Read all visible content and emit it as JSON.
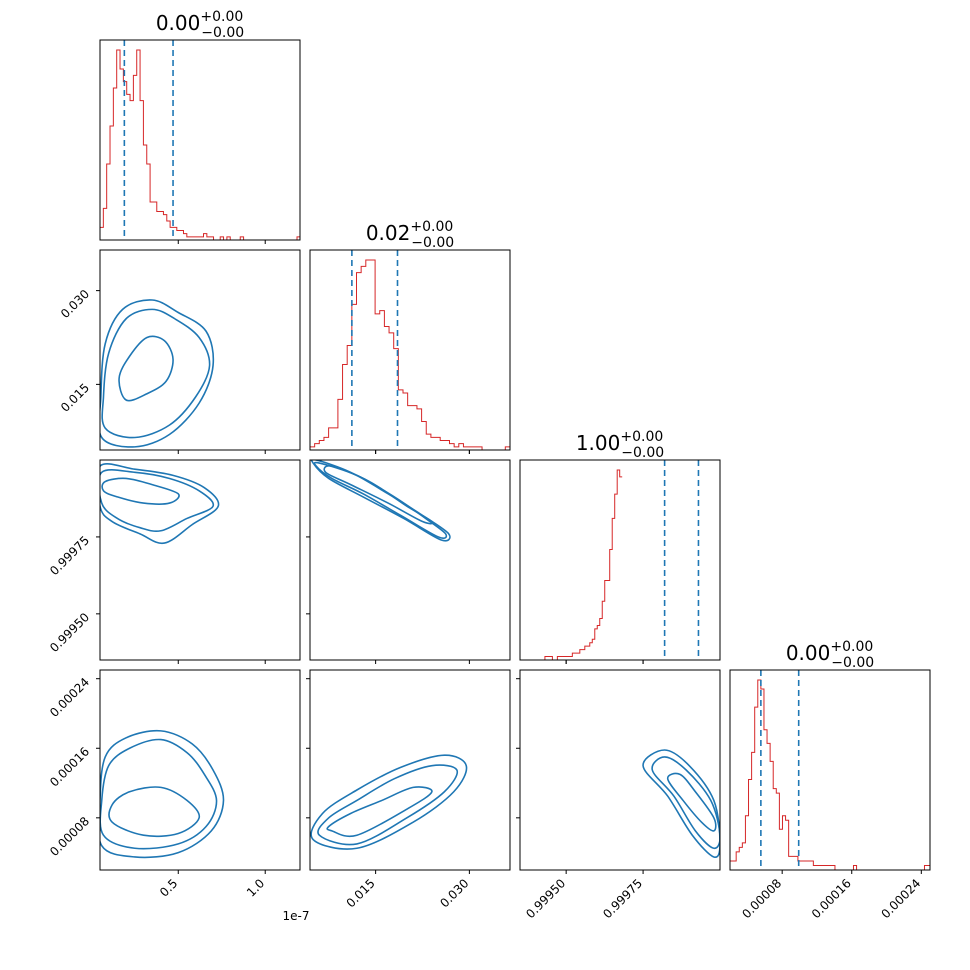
{
  "chart_data": {
    "type": "corner",
    "colors": {
      "hist": "#d62728",
      "contour": "#1f77b4",
      "quantile": "#1f77b4"
    },
    "params": [
      {
        "range": [
          0.05,
          1.2
        ],
        "quantiles": [
          0.19,
          0.47
        ],
        "title": {
          "value": "0.00",
          "plus": "+0.00",
          "minus": "−0.00"
        },
        "ticks": [
          0.5,
          1.0
        ],
        "tick_labels": [
          "0.5",
          "1.0"
        ],
        "offset_label": "1e-7",
        "hist": {
          "start": 0.05,
          "step": 0.0192,
          "counts": [
            4,
            10,
            24,
            36,
            48,
            60,
            54,
            50,
            46,
            44,
            52,
            60,
            44,
            30,
            24,
            12,
            12,
            9,
            9,
            8,
            6,
            4,
            4,
            3,
            3,
            2,
            1,
            1,
            1,
            1,
            1,
            2,
            1,
            1,
            0,
            0,
            1,
            0,
            1,
            0,
            0,
            0,
            1,
            0,
            0,
            0,
            0,
            0,
            0,
            0,
            0,
            0,
            0,
            0,
            0,
            0,
            0,
            0,
            0,
            1
          ]
        }
      },
      {
        "range": [
          0.0045,
          0.0365
        ],
        "quantiles": [
          0.0112,
          0.0185
        ],
        "title": {
          "value": "0.02",
          "plus": "+0.00",
          "minus": "−0.00"
        },
        "ticks": [
          0.015,
          0.03
        ],
        "tick_labels": [
          "0.015",
          "0.030"
        ],
        "hist": {
          "start": 0.0045,
          "step": 0.000744,
          "counts": [
            1,
            2,
            3,
            4,
            7,
            7,
            16,
            27,
            33,
            46,
            56,
            58,
            60,
            60,
            43,
            44,
            39,
            37,
            32,
            19,
            18,
            14,
            14,
            13,
            9,
            5,
            4,
            4,
            3,
            3,
            2,
            1,
            2,
            1,
            1,
            1,
            1,
            0,
            0,
            0,
            0,
            0,
            1
          ]
        }
      },
      {
        "range": [
          0.99935,
          1.0
        ],
        "quantiles": [
          0.99982,
          0.99993
        ],
        "title": {
          "value": "1.00",
          "plus": "+0.00",
          "minus": "−0.00"
        },
        "ticks": [
          0.9995,
          0.99975
        ],
        "tick_labels": [
          "0.99950",
          "0.99975"
        ],
        "hist": {
          "start": 0.99935,
          "step": 8.1e-06,
          "counts": [
            0,
            0,
            0,
            0,
            0,
            0,
            0,
            0,
            0,
            0,
            1,
            1,
            1,
            0,
            0,
            1,
            1,
            1,
            1,
            1,
            1,
            2,
            2,
            2,
            3,
            3,
            4,
            4,
            5,
            6,
            9,
            10,
            12,
            17,
            23,
            23,
            32,
            41,
            48,
            55,
            53
          ]
        }
      },
      {
        "range": [
          2e-05,
          0.00025
        ],
        "quantiles": [
          5.55e-05,
          9.9e-05
        ],
        "title": {
          "value": "0.00",
          "plus": "+0.00",
          "minus": "−0.00"
        },
        "ticks": [
          8e-05,
          0.00016,
          0.00024
        ],
        "tick_labels": [
          "0.00008",
          "0.00016",
          "0.00024"
        ],
        "hist": {
          "start": 2e-05,
          "step": 3.55e-06,
          "counts": [
            2,
            2,
            4,
            5,
            6,
            12,
            20,
            26,
            36,
            42,
            40,
            31,
            28,
            24,
            18,
            17,
            9,
            12,
            11,
            3,
            3,
            3,
            2,
            2,
            2,
            2,
            2,
            1,
            1,
            1,
            1,
            1,
            1,
            1,
            0,
            0,
            0,
            0,
            0,
            0,
            1,
            0,
            0,
            0,
            0,
            0,
            0,
            0,
            0,
            0,
            0,
            0,
            0,
            0,
            0,
            0,
            0,
            0,
            0,
            0,
            0,
            0,
            0,
            1,
            1
          ]
        }
      }
    ],
    "panels_2d": [
      {
        "row": 1,
        "col": 0,
        "contours": [
          [
            [
              0.2,
              0.0125
            ],
            [
              0.32,
              0.0135
            ],
            [
              0.43,
              0.0155
            ],
            [
              0.47,
              0.019
            ],
            [
              0.42,
              0.022
            ],
            [
              0.32,
              0.0225
            ],
            [
              0.22,
              0.0195
            ],
            [
              0.16,
              0.016
            ]
          ],
          [
            [
              0.08,
              0.008
            ],
            [
              0.25,
              0.0065
            ],
            [
              0.45,
              0.0085
            ],
            [
              0.6,
              0.013
            ],
            [
              0.68,
              0.018
            ],
            [
              0.62,
              0.0225
            ],
            [
              0.48,
              0.0255
            ],
            [
              0.35,
              0.027
            ],
            [
              0.2,
              0.0255
            ],
            [
              0.1,
              0.02
            ],
            [
              0.07,
              0.013
            ]
          ],
          [
            [
              0.06,
              0.0065
            ],
            [
              0.25,
              0.005
            ],
            [
              0.45,
              0.007
            ],
            [
              0.62,
              0.012
            ],
            [
              0.7,
              0.018
            ],
            [
              0.66,
              0.0235
            ],
            [
              0.5,
              0.0265
            ],
            [
              0.35,
              0.0285
            ],
            [
              0.18,
              0.027
            ],
            [
              0.08,
              0.0215
            ],
            [
              0.055,
              0.013
            ]
          ]
        ]
      },
      {
        "row": 2,
        "col": 0,
        "contours": [
          [
            [
              0.08,
              0.99993
            ],
            [
              0.2,
              0.99994
            ],
            [
              0.35,
              0.99992
            ],
            [
              0.5,
              0.99989
            ],
            [
              0.45,
              0.99986
            ],
            [
              0.3,
              0.99986
            ],
            [
              0.15,
              0.99988
            ],
            [
              0.07,
              0.9999
            ]
          ],
          [
            [
              0.06,
              0.99996
            ],
            [
              0.25,
              0.99996
            ],
            [
              0.45,
              0.99994
            ],
            [
              0.62,
              0.9999
            ],
            [
              0.7,
              0.99985
            ],
            [
              0.55,
              0.99981
            ],
            [
              0.4,
              0.99977
            ],
            [
              0.28,
              0.99978
            ],
            [
              0.15,
              0.99981
            ],
            [
              0.06,
              0.99986
            ]
          ],
          [
            [
              0.05,
              0.99998
            ],
            [
              0.25,
              0.99997
            ],
            [
              0.47,
              0.99995
            ],
            [
              0.65,
              0.99991
            ],
            [
              0.73,
              0.99985
            ],
            [
              0.58,
              0.99979
            ],
            [
              0.42,
              0.99973
            ],
            [
              0.28,
              0.99976
            ],
            [
              0.12,
              0.9998
            ],
            [
              0.05,
              0.99985
            ]
          ]
        ]
      },
      {
        "row": 2,
        "col": 1,
        "contours": [
          [
            [
              0.008,
              0.99998
            ],
            [
              0.014,
              0.99993
            ],
            [
              0.02,
              0.99985
            ],
            [
              0.024,
              0.9998
            ],
            [
              0.0225,
              0.9998
            ],
            [
              0.017,
              0.99986
            ],
            [
              0.011,
              0.99992
            ],
            [
              0.007,
              0.99996
            ]
          ],
          [
            [
              0.006,
              0.99999
            ],
            [
              0.012,
              0.99995
            ],
            [
              0.018,
              0.99988
            ],
            [
              0.023,
              0.99981
            ],
            [
              0.0262,
              0.99976
            ],
            [
              0.025,
              0.99975
            ],
            [
              0.019,
              0.99982
            ],
            [
              0.013,
              0.99989
            ],
            [
              0.008,
              0.99994
            ],
            [
              0.0055,
              0.99998
            ]
          ],
          [
            [
              0.0055,
              1.0
            ],
            [
              0.011,
              0.99996
            ],
            [
              0.017,
              0.99989
            ],
            [
              0.0225,
              0.99982
            ],
            [
              0.0267,
              0.99976
            ],
            [
              0.0255,
              0.99974
            ],
            [
              0.0195,
              0.99981
            ],
            [
              0.013,
              0.99988
            ],
            [
              0.0075,
              0.99994
            ],
            [
              0.005,
              0.99999
            ]
          ]
        ]
      },
      {
        "row": 3,
        "col": 0,
        "contours": [
          [
            [
              0.12,
              7.5e-05
            ],
            [
              0.3,
              6e-05
            ],
            [
              0.5,
              6.2e-05
            ],
            [
              0.62,
              8e-05
            ],
            [
              0.55,
              0.0001
            ],
            [
              0.4,
              0.000115
            ],
            [
              0.22,
              0.00011
            ],
            [
              0.12,
              9.5e-05
            ]
          ],
          [
            [
              0.07,
              6e-05
            ],
            [
              0.25,
              4.5e-05
            ],
            [
              0.5,
              5e-05
            ],
            [
              0.66,
              7e-05
            ],
            [
              0.72,
              0.0001
            ],
            [
              0.65,
              0.00013
            ],
            [
              0.55,
              0.000155
            ],
            [
              0.4,
              0.00017
            ],
            [
              0.22,
              0.00016
            ],
            [
              0.1,
              0.00014
            ],
            [
              0.06,
              0.0001
            ]
          ],
          [
            [
              0.06,
              4.8e-05
            ],
            [
              0.25,
              3.5e-05
            ],
            [
              0.5,
              4e-05
            ],
            [
              0.69,
              6.5e-05
            ],
            [
              0.76,
              0.0001
            ],
            [
              0.7,
              0.000135
            ],
            [
              0.58,
              0.000165
            ],
            [
              0.4,
              0.00018
            ],
            [
              0.2,
              0.000172
            ],
            [
              0.08,
              0.00015
            ],
            [
              0.05,
              0.0001
            ]
          ]
        ]
      },
      {
        "row": 3,
        "col": 1,
        "contours": [
          [
            [
              0.008,
              6.5e-05
            ],
            [
              0.012,
              6e-05
            ],
            [
              0.02,
              9e-05
            ],
            [
              0.024,
              0.00011
            ],
            [
              0.021,
              0.000115
            ],
            [
              0.016,
              0.0001
            ],
            [
              0.011,
              8.5e-05
            ],
            [
              0.0075,
              7e-05
            ]
          ],
          [
            [
              0.006,
              6e-05
            ],
            [
              0.012,
              5e-05
            ],
            [
              0.02,
              8e-05
            ],
            [
              0.026,
              0.00011
            ],
            [
              0.028,
              0.000135
            ],
            [
              0.024,
              0.00014
            ],
            [
              0.018,
              0.000125
            ],
            [
              0.012,
              0.0001
            ],
            [
              0.0075,
              8e-05
            ]
          ],
          [
            [
              0.005,
              5.5e-05
            ],
            [
              0.012,
              4.5e-05
            ],
            [
              0.021,
              7.5e-05
            ],
            [
              0.0275,
              0.00011
            ],
            [
              0.0295,
              0.00014
            ],
            [
              0.026,
              0.000152
            ],
            [
              0.019,
              0.000138
            ],
            [
              0.012,
              0.000112
            ],
            [
              0.0065,
              8.5e-05
            ]
          ]
        ]
      },
      {
        "row": 3,
        "col": 2,
        "contours": [
          [
            [
              0.99983,
              0.000125
            ],
            [
              0.99988,
              0.0001
            ],
            [
              0.99994,
              7.5e-05
            ],
            [
              0.99998,
              6.5e-05
            ],
            [
              0.99998,
              8e-05
            ],
            [
              0.99992,
              0.00011
            ],
            [
              0.99987,
              0.00013
            ]
          ],
          [
            [
              0.99978,
              0.000135
            ],
            [
              0.99985,
              0.000105
            ],
            [
              0.99992,
              6.5e-05
            ],
            [
              0.99998,
              4.5e-05
            ],
            [
              1.0,
              6e-05
            ],
            [
              0.99997,
              0.0001
            ],
            [
              0.99989,
              0.000135
            ],
            [
              0.99982,
              0.00015
            ]
          ],
          [
            [
              0.99975,
              0.00014
            ],
            [
              0.99983,
              0.000105
            ],
            [
              0.99991,
              6e-05
            ],
            [
              0.99998,
              3.5e-05
            ],
            [
              1.0,
              5e-05
            ],
            [
              0.99998,
              0.0001
            ],
            [
              0.9999,
              0.00014
            ],
            [
              0.99982,
              0.000158
            ]
          ]
        ]
      }
    ]
  }
}
